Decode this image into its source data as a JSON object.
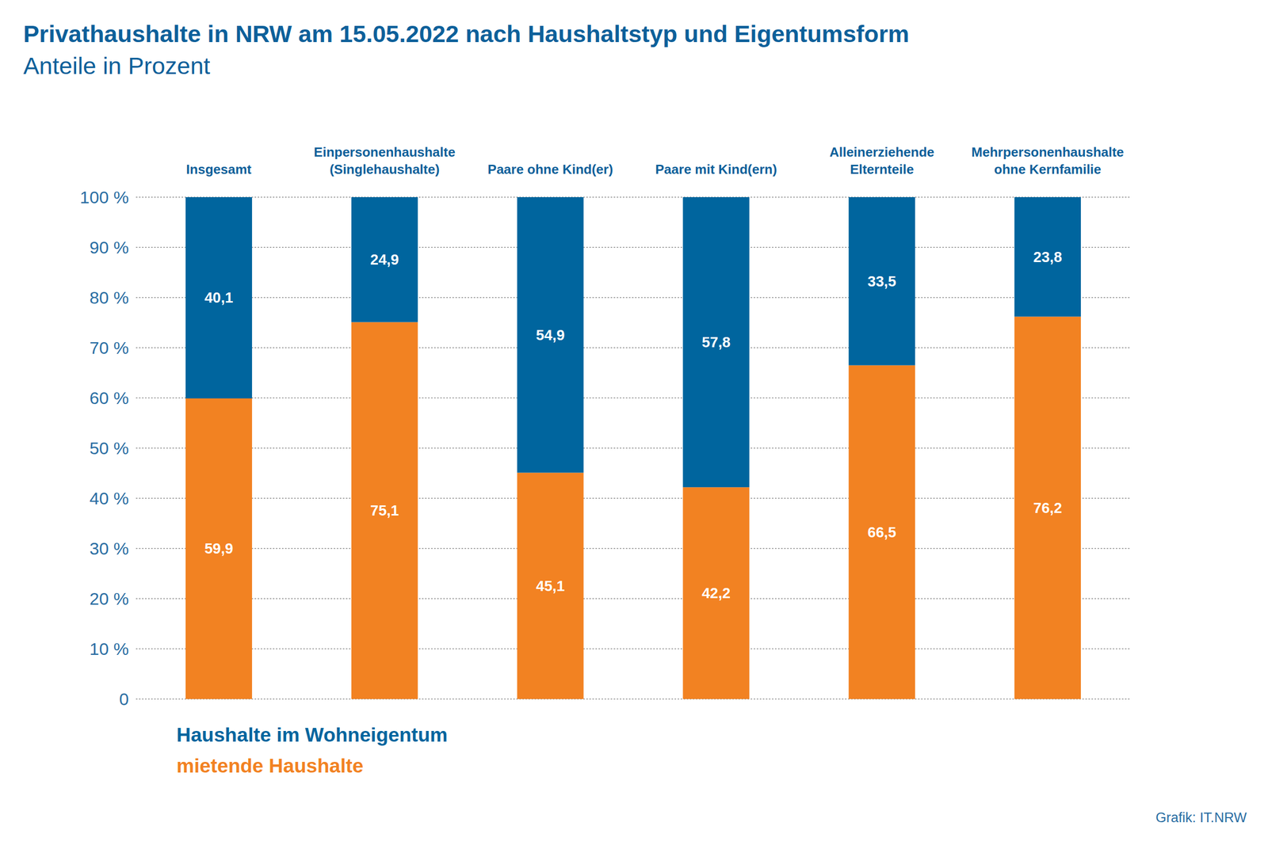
{
  "chart_data": {
    "type": "bar",
    "title": "Privathaushalte in NRW am 15.05.2022 nach Haushaltstyp und Eigentumsform",
    "subtitle": "Anteile in Prozent",
    "source": "Grafik: IT.NRW",
    "categories": [
      "Insgesamt",
      "Einpersonenhaushalte\n(Singlehaushalte)",
      "Paare ohne Kind(er)",
      "Paare mit Kind(ern)",
      "Alleinerziehende\nElternteile",
      "Mehrpersonenhaushalte\nohne Kernfamilie"
    ],
    "series": [
      {
        "name": "mietende Haushalte",
        "color": "#f28222",
        "values": [
          59.9,
          75.1,
          45.1,
          42.2,
          66.5,
          76.2
        ],
        "value_labels": [
          "59,9",
          "75,1",
          "45,1",
          "42,2",
          "66,5",
          "76,2"
        ]
      },
      {
        "name": "Haushalte im Wohneigentum",
        "color": "#00659e",
        "values": [
          40.1,
          24.9,
          54.9,
          57.8,
          33.5,
          23.8
        ],
        "value_labels": [
          "40,1",
          "24,9",
          "54,9",
          "57,8",
          "33,5",
          "23,8"
        ]
      }
    ],
    "stacked": true,
    "data_labels": true,
    "grid": true,
    "legend": "bottom-left",
    "ylim": [
      0,
      100
    ],
    "yticks": [
      0,
      {
        "value": 10,
        "label": "10 %"
      },
      {
        "value": 20,
        "label": "20 %"
      },
      {
        "value": 30,
        "label": "30 %"
      },
      {
        "value": 40,
        "label": "40 %"
      },
      {
        "value": 50,
        "label": "50 %"
      },
      {
        "value": 60,
        "label": "60 %"
      },
      {
        "value": 70,
        "label": "70 %"
      },
      {
        "value": 80,
        "label": "80 %"
      },
      {
        "value": 90,
        "label": "90 %"
      },
      {
        "value": 100,
        "label": "100 %"
      }
    ]
  }
}
